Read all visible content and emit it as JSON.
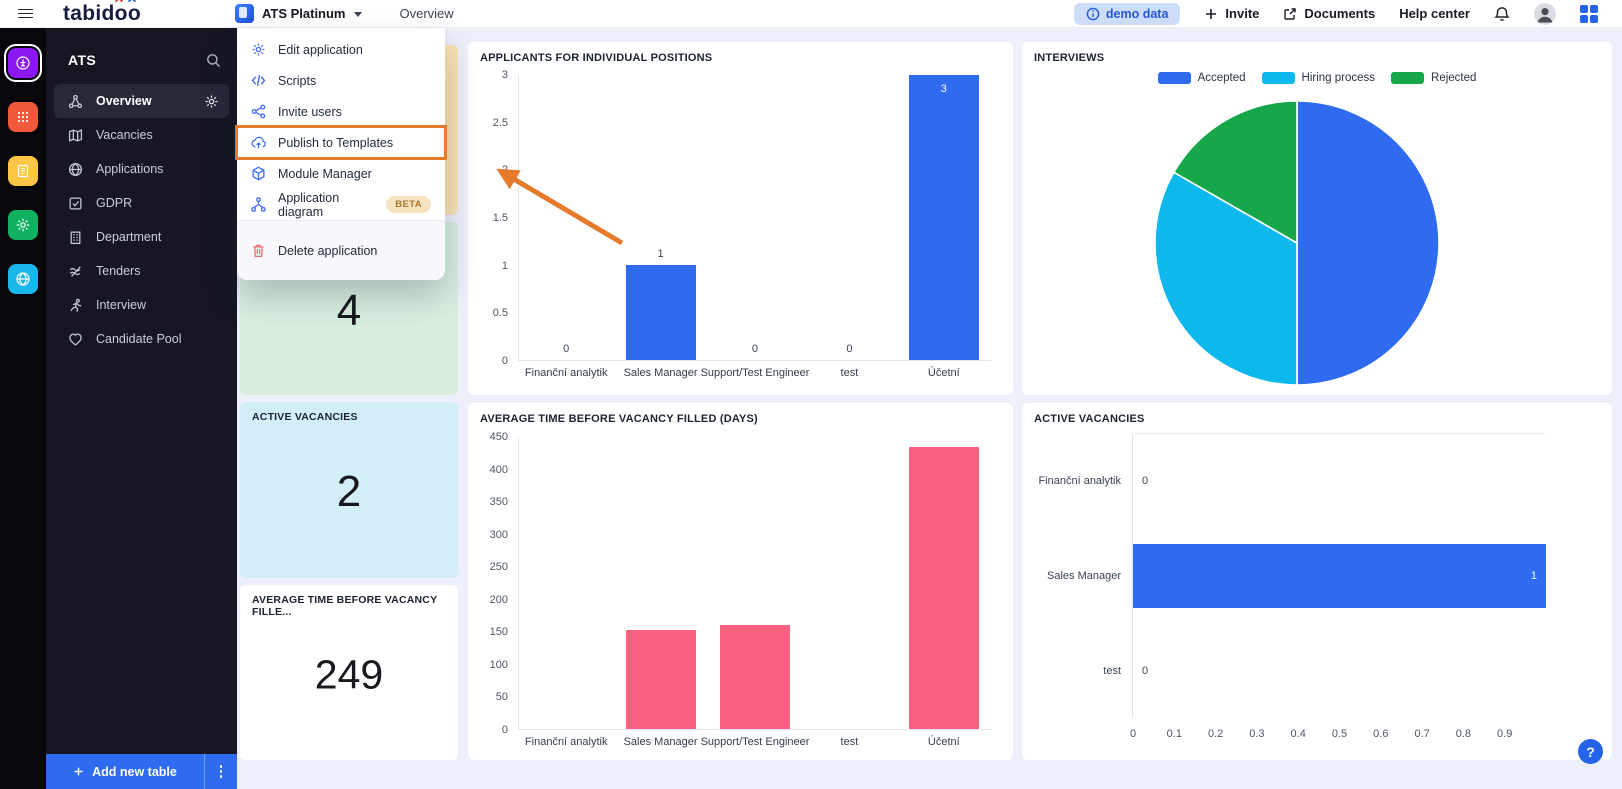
{
  "topbar": {
    "logo_pre": "tabid",
    "logo_o1": "o",
    "logo_o2": "o",
    "app_name": "ATS Platinum",
    "breadcrumb": "Overview",
    "demo_badge": "demo data",
    "invite_label": "Invite",
    "documents_label": "Documents",
    "help_center_label": "Help center"
  },
  "sidebar": {
    "title": "ATS",
    "items": [
      {
        "label": "Overview",
        "icon": "overview",
        "active": true
      },
      {
        "label": "Vacancies",
        "icon": "map"
      },
      {
        "label": "Applications",
        "icon": "globe"
      },
      {
        "label": "GDPR",
        "icon": "check-square"
      },
      {
        "label": "Department",
        "icon": "building"
      },
      {
        "label": "Tenders",
        "icon": "tenders"
      },
      {
        "label": "Interview",
        "icon": "runner"
      },
      {
        "label": "Candidate Pool",
        "icon": "heart"
      }
    ],
    "add_table_label": "Add new table"
  },
  "app_menu": {
    "items": [
      {
        "label": "Edit application",
        "icon": "gear"
      },
      {
        "label": "Scripts",
        "icon": "code"
      },
      {
        "label": "Invite users",
        "icon": "share"
      },
      {
        "label": "Publish to Templates",
        "icon": "cloud-upload",
        "highlighted": true
      },
      {
        "label": "Module Manager",
        "icon": "cube"
      },
      {
        "label": "Application diagram",
        "icon": "diagram",
        "badge": "BETA"
      }
    ],
    "delete_item": {
      "label": "Delete application",
      "icon": "trash"
    }
  },
  "stat_cards": [
    {
      "title": "",
      "value": "",
      "bg": "#fae3b4"
    },
    {
      "title": "",
      "value": "4",
      "bg": "#d8efdf"
    },
    {
      "title": "ACTIVE VACANCIES",
      "value": "2",
      "bg": "#d2eff7"
    },
    {
      "title": "AVERAGE TIME BEFORE VACANCY FILLE...",
      "value": "249",
      "bg": "#ffffff"
    }
  ],
  "chart_data": [
    {
      "type": "bar",
      "title": "APPLICANTS FOR INDIVIDUAL POSITIONS",
      "categories": [
        "Finanční analytik",
        "Sales Manager",
        "Support/Test Engineer",
        "test",
        "Účetní"
      ],
      "values": [
        0,
        1,
        0,
        0,
        3
      ],
      "value_labels": [
        "0",
        "1",
        "0",
        "0",
        "3"
      ],
      "ylim": [
        0,
        3
      ],
      "yticks": [
        0,
        0.5,
        1,
        1.5,
        2,
        2.5,
        3
      ],
      "bar_color": "#2f6bf0",
      "grid": false,
      "legend": false
    },
    {
      "type": "pie",
      "title": "INTERVIEWS",
      "labels": [
        "Accepted",
        "Hiring process",
        "Rejected"
      ],
      "values_percent": [
        50,
        33.3,
        16.7
      ],
      "colors": [
        "#2f6bf0",
        "#0db9ec",
        "#17a74b"
      ],
      "legend_position": "top"
    },
    {
      "type": "bar",
      "title": "AVERAGE TIME BEFORE VACANCY FILLED (DAYS)",
      "categories": [
        "Finanční analytik",
        "Sales Manager",
        "Support/Test Engineer",
        "test",
        "Účetní"
      ],
      "values": [
        0,
        152,
        160,
        0,
        435
      ],
      "value_labels": null,
      "ylim": [
        0,
        450
      ],
      "yticks": [
        0,
        50,
        100,
        150,
        200,
        250,
        300,
        350,
        400,
        450
      ],
      "bar_color": "#f8617f",
      "grid": false,
      "legend": false
    },
    {
      "type": "horizontal_bar",
      "title": "ACTIVE VACANCIES",
      "categories": [
        "Finanční analytik",
        "Sales Manager",
        "test"
      ],
      "values": [
        0,
        1,
        0
      ],
      "value_labels": [
        "0",
        "1",
        "0"
      ],
      "xlim": [
        0,
        1
      ],
      "xticks": [
        0,
        0.1,
        0.2,
        0.3,
        0.4,
        0.5,
        0.6,
        0.7,
        0.8,
        0.9
      ],
      "bar_color": "#2f6bf0",
      "grid": false,
      "legend": false
    }
  ],
  "help_fab": "?",
  "colors": {
    "accent_blue": "#2f6bf0",
    "bar_pink": "#f8617f",
    "pie_cyan": "#0db9ec",
    "pie_green": "#17a74b",
    "highlight_orange": "#e5792c",
    "demo_badge_bg": "#ccdcf9"
  }
}
